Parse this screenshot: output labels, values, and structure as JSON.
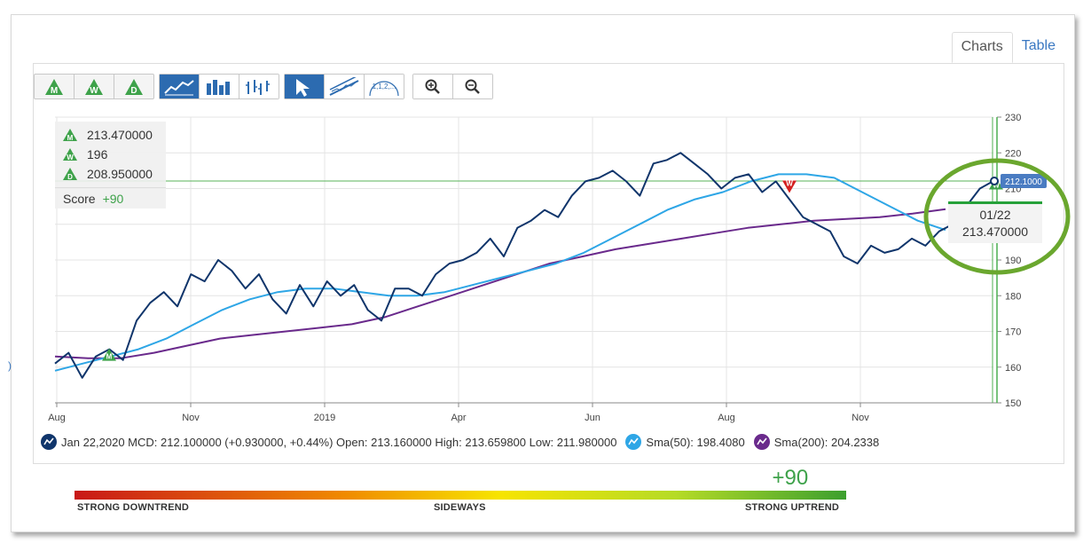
{
  "tabs": [
    {
      "label": "Charts",
      "active": true
    },
    {
      "label": "Table",
      "active": false
    }
  ],
  "toolbar": {
    "rating_buttons": [
      {
        "icon": "monthly-rating-icon",
        "letter": "M"
      },
      {
        "icon": "weekly-rating-icon",
        "letter": "W"
      },
      {
        "icon": "daily-rating-icon",
        "letter": "D"
      }
    ],
    "chart_type_buttons": [
      {
        "icon": "line-chart-icon"
      },
      {
        "icon": "bar-chart-icon"
      },
      {
        "icon": "ohlc-chart-icon"
      }
    ],
    "tool_buttons": [
      {
        "icon": "pointer-icon"
      },
      {
        "icon": "trendline-icon"
      },
      {
        "icon": "fibonacci-icon",
        "label": "1,1,2,..."
      }
    ],
    "zoom_buttons": [
      {
        "icon": "zoom-in-icon"
      },
      {
        "icon": "zoom-out-icon"
      }
    ]
  },
  "info_panel": {
    "monthly": "213.470000",
    "weekly": "196",
    "daily": "208.950000",
    "score_label": "Score",
    "score_value": "+90"
  },
  "tooltip": {
    "date": "01/22",
    "value": "213.470000"
  },
  "last_price_label": "212.1000",
  "legend": {
    "price_text": "Jan 22,2020 MCD: 212.100000 (+0.930000, +0.44%) Open: 213.160000 High: 213.659800 Low: 211.980000",
    "sma50_text": "Sma(50): 198.4080",
    "sma200_text": "Sma(200): 204.2338"
  },
  "trend": {
    "score": "+90",
    "left_label": "STRONG DOWNTREND",
    "mid_label": "SIDEWAYS",
    "right_label": "STRONG UPTREND",
    "marker_fraction": 0.95
  },
  "colors": {
    "price": "#10356b",
    "sma50": "#2ea6e6",
    "sma200": "#6a2a8c",
    "grid": "#e4e4e4",
    "rating_green": "#3ea24a",
    "rating_red": "#d42020",
    "highlight_circle": "#6aa72e",
    "accent_blue": "#2c6bb0"
  },
  "chart_data": {
    "type": "line",
    "x_tick_labels": [
      "Aug",
      "Nov",
      "2019",
      "Apr",
      "Jun",
      "Aug",
      "Nov"
    ],
    "y_tick_labels": [
      "150",
      "160",
      "170",
      "180",
      "190",
      "200",
      "210",
      "220",
      "230"
    ],
    "ylim": [
      150,
      230
    ],
    "horizontal_reference": 212.1,
    "grid": true,
    "series": [
      {
        "name": "MCD",
        "values": [
          161,
          164,
          157,
          163,
          165,
          162,
          173,
          178,
          181,
          177,
          186,
          184,
          190,
          187,
          182,
          186,
          179,
          175,
          183,
          177,
          184,
          180,
          183,
          176,
          173,
          182,
          182,
          180,
          186,
          189,
          190,
          192,
          196,
          191,
          199,
          201,
          204,
          202,
          208,
          212,
          213,
          215,
          212,
          208,
          217,
          218,
          220,
          217,
          214,
          210,
          213,
          214,
          209,
          212,
          207,
          202,
          200,
          198,
          191,
          189,
          194,
          192,
          193,
          196,
          194,
          198,
          200,
          205,
          210,
          212.1
        ]
      },
      {
        "name": "Sma(50)",
        "values": [
          159,
          161,
          163,
          165,
          168,
          172,
          176,
          179,
          181,
          182,
          182,
          181,
          180,
          180,
          181,
          183,
          185,
          187,
          189,
          192,
          196,
          200,
          204,
          207,
          209,
          212,
          214,
          214,
          213,
          209,
          205,
          201,
          198.4
        ]
      },
      {
        "name": "Sma(200)",
        "values": [
          163,
          162.5,
          162.5,
          164,
          166,
          168,
          169,
          170,
          171,
          172,
          174,
          177,
          180,
          183,
          186,
          189,
          191,
          193,
          194.5,
          196,
          197.5,
          199,
          200,
          201,
          201.5,
          202,
          203,
          204.2
        ]
      }
    ],
    "rating_markers": [
      {
        "label": "M",
        "value": 163,
        "kind": "up"
      },
      {
        "label": "W",
        "value": 211,
        "kind": "down"
      },
      {
        "label": "W",
        "value": 211,
        "kind": "up"
      }
    ]
  }
}
